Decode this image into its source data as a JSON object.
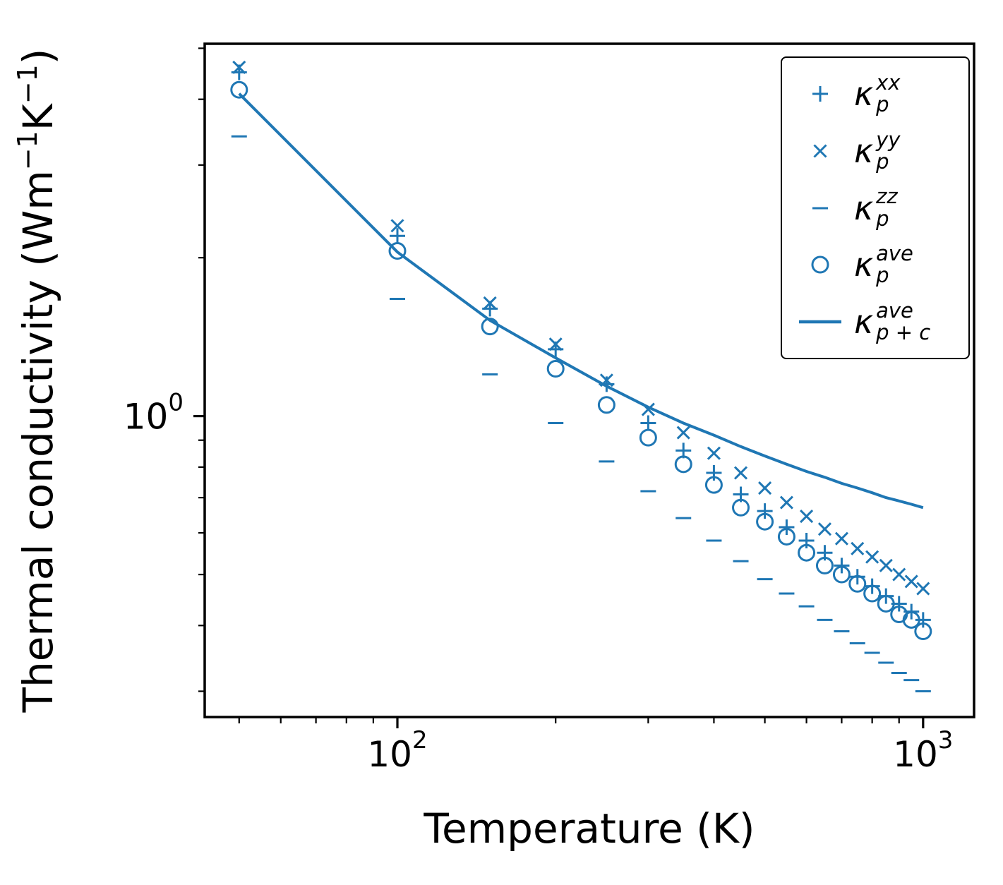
{
  "figure": {
    "background": "#ffffff",
    "accent_color": "#1f77b4",
    "axis_color": "#000000"
  },
  "chart_data": {
    "type": "scatter",
    "title": "",
    "xlabel": "Temperature (K)",
    "ylabel": "Thermal conductivity (Wm⁻¹K⁻¹)",
    "ylabel_parts": [
      {
        "text": "Thermal conductivity (Wm"
      },
      {
        "sup": "−1"
      },
      {
        "text": "K"
      },
      {
        "sup": "−1"
      },
      {
        "text": ")"
      }
    ],
    "x_scale": "log",
    "y_scale": "log",
    "xlim": [
      43,
      1250
    ],
    "ylim": [
      0.268,
      5.1
    ],
    "grid": false,
    "legend_position": "upper right",
    "x": [
      50,
      100,
      150,
      200,
      250,
      300,
      350,
      400,
      450,
      500,
      550,
      600,
      650,
      700,
      750,
      800,
      850,
      900,
      950,
      1000
    ],
    "series": [
      {
        "name": "kappa_p_xx",
        "marker": "plus",
        "label": {
          "symbol": "κ",
          "sup": "xx",
          "sub": "p"
        },
        "values": [
          4.5,
          2.2,
          1.6,
          1.34,
          1.15,
          0.97,
          0.86,
          0.78,
          0.71,
          0.66,
          0.615,
          0.58,
          0.55,
          0.52,
          0.495,
          0.475,
          0.455,
          0.44,
          0.425,
          0.41
        ]
      },
      {
        "name": "kappa_p_yy",
        "marker": "x",
        "label": {
          "symbol": "κ",
          "sup": "yy",
          "sub": "p"
        },
        "values": [
          4.6,
          2.3,
          1.64,
          1.37,
          1.17,
          1.03,
          0.93,
          0.85,
          0.78,
          0.73,
          0.685,
          0.645,
          0.61,
          0.585,
          0.56,
          0.54,
          0.52,
          0.5,
          0.485,
          0.47
        ]
      },
      {
        "name": "kappa_p_zz",
        "marker": "dash",
        "label": {
          "symbol": "κ",
          "sup": "zz",
          "sub": "p"
        },
        "values": [
          3.4,
          1.67,
          1.2,
          0.97,
          0.82,
          0.72,
          0.64,
          0.58,
          0.53,
          0.49,
          0.46,
          0.435,
          0.41,
          0.39,
          0.37,
          0.355,
          0.34,
          0.325,
          0.315,
          0.3
        ]
      },
      {
        "name": "kappa_p_ave",
        "marker": "circle",
        "label": {
          "symbol": "κ",
          "sup": "ave",
          "sub": "p"
        },
        "values": [
          4.17,
          2.06,
          1.48,
          1.23,
          1.05,
          0.91,
          0.81,
          0.74,
          0.67,
          0.63,
          0.59,
          0.55,
          0.52,
          0.5,
          0.48,
          0.46,
          0.44,
          0.42,
          0.41,
          0.39
        ]
      },
      {
        "name": "kappa_p_plus_c_ave",
        "marker": "line",
        "label": {
          "symbol": "κ",
          "sup": "ave",
          "sub": "p + c"
        },
        "values": [
          4.1,
          2.05,
          1.52,
          1.29,
          1.14,
          1.04,
          0.97,
          0.92,
          0.875,
          0.84,
          0.81,
          0.785,
          0.765,
          0.745,
          0.73,
          0.715,
          0.7,
          0.69,
          0.68,
          0.67
        ]
      }
    ],
    "x_ticks": {
      "major": [
        {
          "value": 100,
          "base": "10",
          "exp": "2"
        },
        {
          "value": 1000,
          "base": "10",
          "exp": "3"
        }
      ],
      "minor": [
        50,
        60,
        70,
        80,
        90,
        200,
        300,
        400,
        500,
        600,
        700,
        800,
        900
      ]
    },
    "y_ticks": {
      "major": [
        {
          "value": 1,
          "base": "10",
          "exp": "0"
        }
      ],
      "minor": [
        0.3,
        0.4,
        0.5,
        0.6,
        0.7,
        0.8,
        0.9,
        2,
        3,
        4,
        5
      ]
    }
  }
}
